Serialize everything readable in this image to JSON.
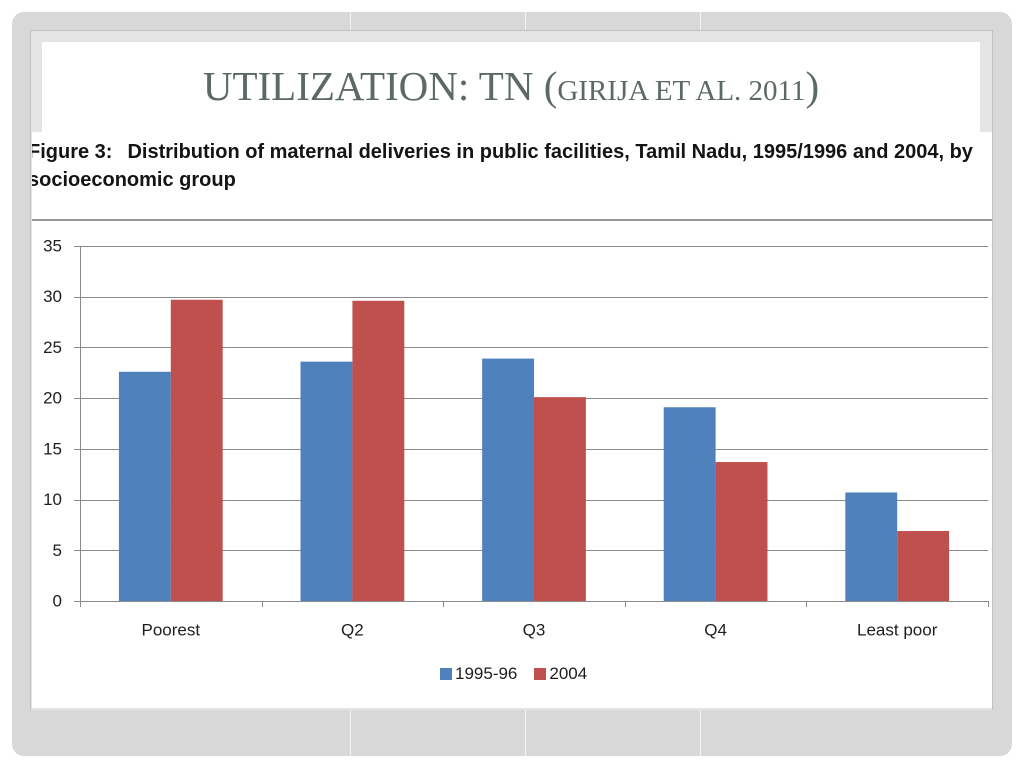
{
  "slide": {
    "title_main": "UTILIZATION: TN (",
    "title_citation": "GIRIJA ET AL. 2011",
    "title_close": ")",
    "title_color": "#5B6A62"
  },
  "chart_data": {
    "type": "bar",
    "title": {
      "label": "Figure 3:",
      "lines": [
        "Distribution of maternal deliveries in public facilities, Tamil Nadu, 1995/1996 and 2004, by",
        "socioeconomic group"
      ]
    },
    "categories": [
      "Poorest",
      "Q2",
      "Q3",
      "Q4",
      "Least poor"
    ],
    "series": [
      {
        "name": "1995-96",
        "color": "#4F81BD",
        "values": [
          22.6,
          23.6,
          23.9,
          19.1,
          10.7
        ]
      },
      {
        "name": "2004",
        "color": "#C0504D",
        "values": [
          29.7,
          29.6,
          20.1,
          13.7,
          6.9
        ]
      }
    ],
    "ylim": [
      0,
      35
    ],
    "yticks": [
      0,
      5,
      10,
      15,
      20,
      25,
      30,
      35
    ],
    "grid": true,
    "legend": "bottom"
  }
}
